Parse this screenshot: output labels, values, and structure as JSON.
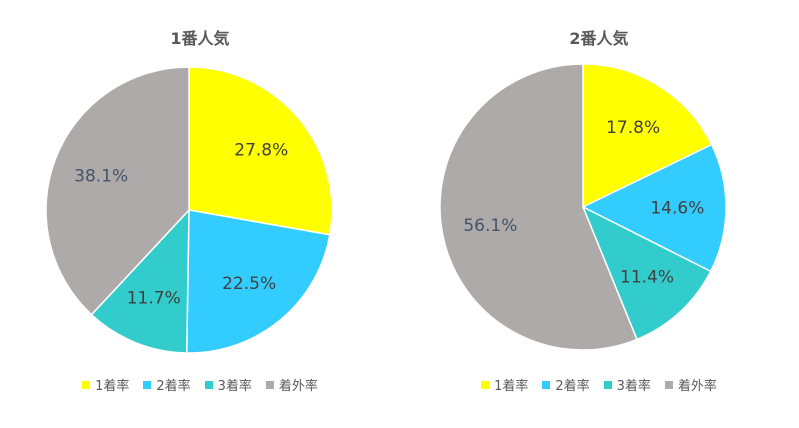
{
  "colors": [
    "#ffff00",
    "#33ccff",
    "#33cccc",
    "#aeaaaa"
  ],
  "chart_data": [
    {
      "type": "pie",
      "title": "1番人気",
      "categories": [
        "1着率",
        "2着率",
        "3着率",
        "着外率"
      ],
      "values": [
        27.8,
        22.5,
        11.7,
        38.1
      ],
      "labels": [
        "27.8%",
        "22.5%",
        "11.7%",
        "38.1%"
      ],
      "legend": "bottom"
    },
    {
      "type": "pie",
      "title": "2番人気",
      "categories": [
        "1着率",
        "2着率",
        "3着率",
        "着外率"
      ],
      "values": [
        17.8,
        14.6,
        11.4,
        56.1
      ],
      "labels": [
        "17.8%",
        "14.6%",
        "11.4%",
        "56.1%"
      ],
      "legend": "bottom"
    }
  ]
}
